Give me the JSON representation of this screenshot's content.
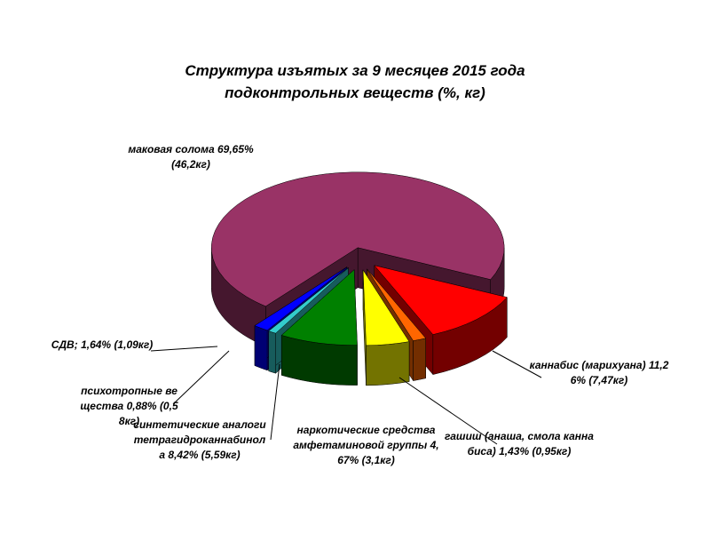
{
  "chart_data": {
    "type": "pie3d",
    "title": [
      "Структура изъятых за 9 месяцев 2015 года",
      "подконтрольных веществ (%, кг)"
    ],
    "categories": [
      "маковая солома",
      "каннабис (марихуана)",
      "гашиш (анаша, смола каннабиса)",
      "наркотические средства амфетаминовой группы",
      "синтетические аналоги тетрагидроканнабинола",
      "психотропные вещества",
      "СДВ;"
    ],
    "values": [
      69.65,
      11.26,
      1.43,
      4.67,
      8.42,
      0.88,
      1.64
    ],
    "value_labels": [
      "69,65%",
      "11,26%",
      "1,43%",
      "4,67%",
      "8,42%",
      "0,88%",
      "1,64%"
    ],
    "weight_labels": [
      "(46,2кг)",
      "(7,47кг)",
      "(0,95кг)",
      "(3,1кг)",
      "(5,59кг)",
      "(0,58кг)",
      "(1,09кг)"
    ],
    "colors": [
      "#993366",
      "#ff0000",
      "#ff6600",
      "#ffff00",
      "#008000",
      "#33cccc",
      "#0000ff"
    ]
  }
}
